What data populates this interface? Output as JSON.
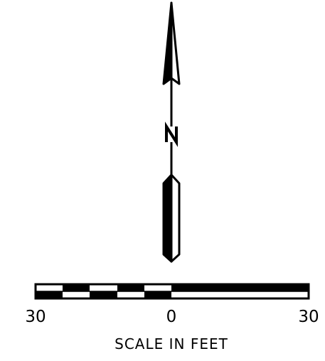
{
  "north_arrow": {
    "letter": "N"
  },
  "scale_bar": {
    "left_label": "30",
    "center_label": "0",
    "right_label": "30",
    "title": "SCALE IN FEET",
    "unit": "feet",
    "ink_color": "#000000",
    "paper_color": "#ffffff"
  }
}
